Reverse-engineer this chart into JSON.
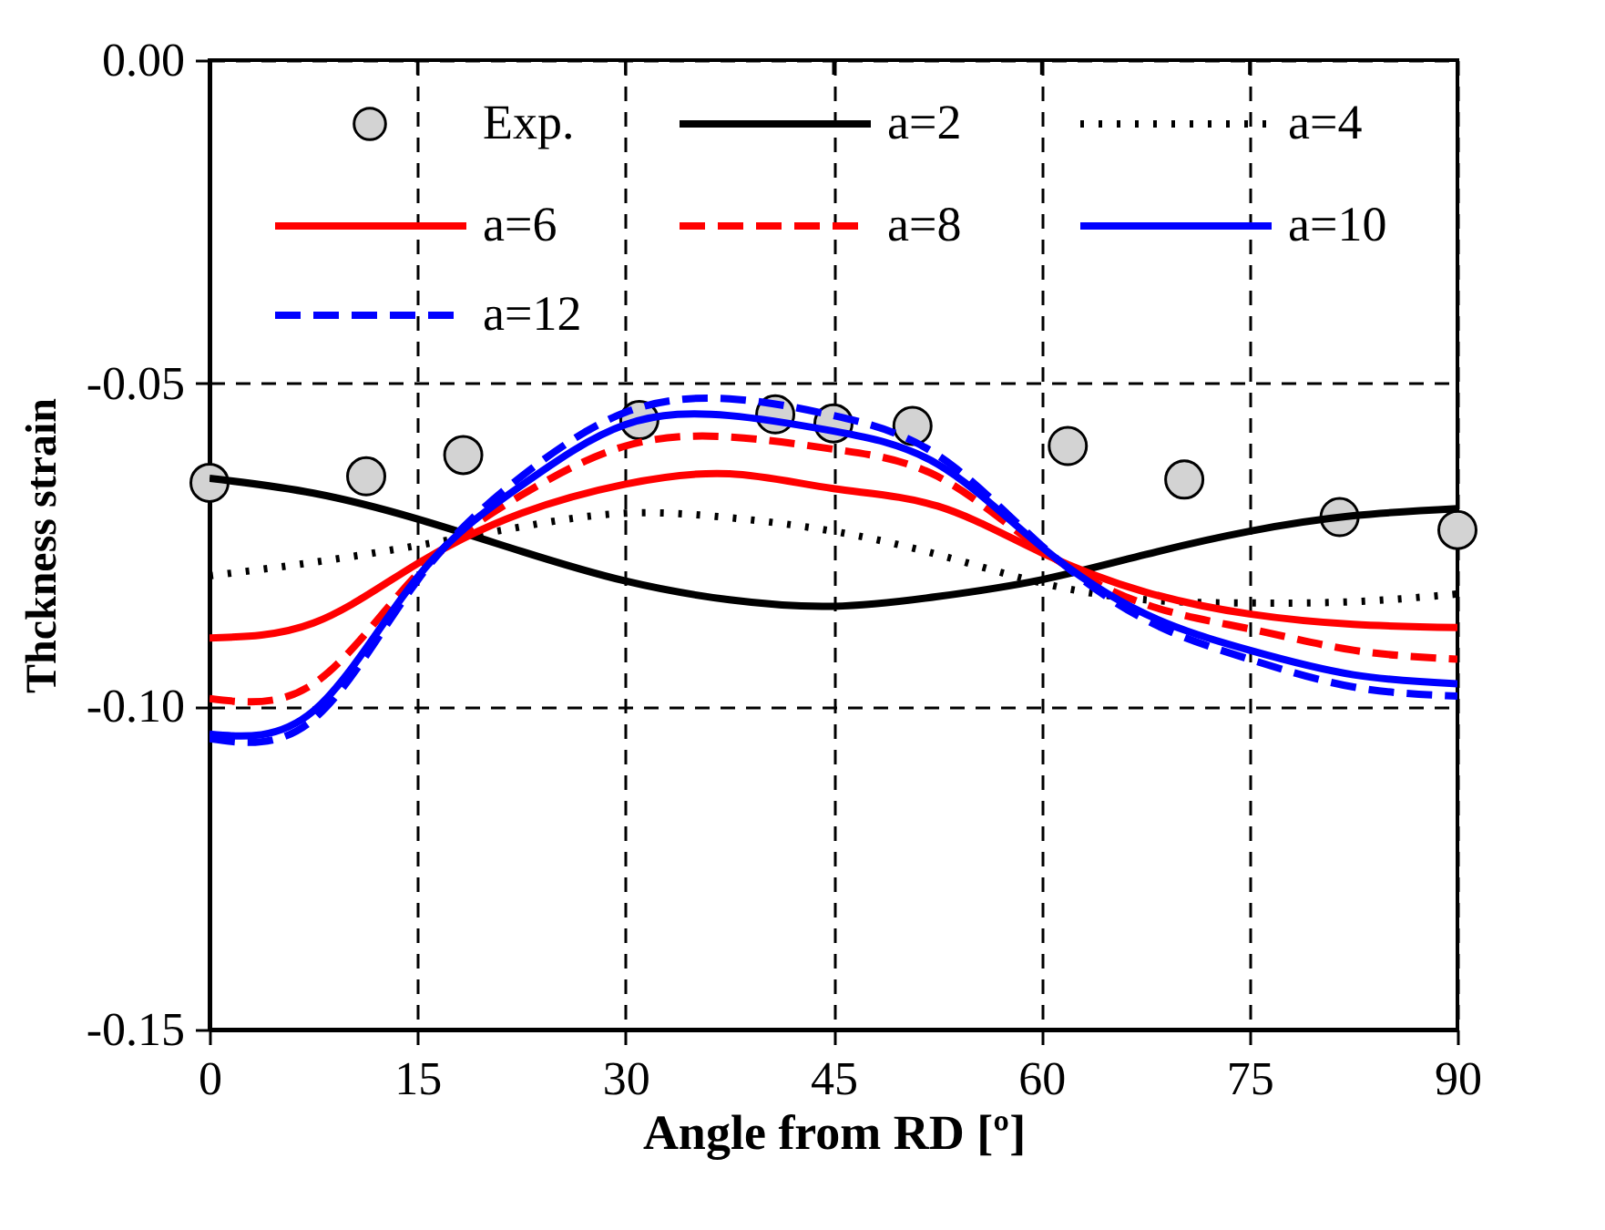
{
  "chart_data": {
    "type": "line",
    "xlabel": "Angle from RD [º]",
    "ylabel": "Thckness strain",
    "x": [
      0,
      7.5,
      15,
      22.5,
      30,
      37.5,
      45,
      52.5,
      60,
      67.5,
      75,
      82.5,
      90
    ],
    "xlim": [
      0,
      90
    ],
    "xticks": [
      0,
      15,
      30,
      45,
      60,
      75,
      90
    ],
    "ylim": [
      -0.15,
      0
    ],
    "yticks": [
      {
        "value": -0.15,
        "label": "-0.15"
      },
      {
        "value": -0.1,
        "label": "-0.10"
      },
      {
        "value": -0.05,
        "label": "-0.05"
      },
      {
        "value": 0,
        "label": "0.00"
      }
    ],
    "grid": true,
    "legend": "top",
    "series": [
      {
        "name": "Exp.",
        "type": "scatter",
        "marker": "circle",
        "color": "#d3d3d3",
        "x": [
          0,
          11.3,
          18.3,
          31,
          40.8,
          45,
          50.7,
          61.9,
          70.3,
          81.5,
          90
        ],
        "values": [
          -0.0654,
          -0.0644,
          -0.0611,
          -0.0557,
          -0.0548,
          -0.0562,
          -0.0566,
          -0.0597,
          -0.0649,
          -0.0707,
          -0.0727
        ]
      },
      {
        "name": "a=2",
        "color": "#000000",
        "line_style": "solid",
        "values": [
          -0.0647,
          -0.067,
          -0.071,
          -0.076,
          -0.0806,
          -0.0835,
          -0.0845,
          -0.083,
          -0.0804,
          -0.0765,
          -0.0729,
          -0.0705,
          -0.0694
        ]
      },
      {
        "name": "a=4",
        "color": "#000000",
        "line_style": "dotted",
        "values": [
          -0.0798,
          -0.0777,
          -0.0751,
          -0.0722,
          -0.0701,
          -0.0708,
          -0.0729,
          -0.0765,
          -0.0809,
          -0.0835,
          -0.084,
          -0.0838,
          -0.0826
        ]
      },
      {
        "name": "a=6",
        "color": "#ff0000",
        "line_style": "solid",
        "values": [
          -0.0894,
          -0.0871,
          -0.0779,
          -0.0701,
          -0.0656,
          -0.064,
          -0.0663,
          -0.069,
          -0.0762,
          -0.0823,
          -0.0857,
          -0.0873,
          -0.0878
        ]
      },
      {
        "name": "a=8",
        "color": "#ff0000",
        "line_style": "dashed",
        "values": [
          -0.0988,
          -0.0965,
          -0.0795,
          -0.0673,
          -0.0597,
          -0.0583,
          -0.0602,
          -0.0644,
          -0.0757,
          -0.0842,
          -0.088,
          -0.0913,
          -0.0927
        ]
      },
      {
        "name": "a=10",
        "color": "#0000ff",
        "line_style": "solid",
        "values": [
          -0.1043,
          -0.1007,
          -0.08,
          -0.0658,
          -0.0564,
          -0.055,
          -0.0574,
          -0.0625,
          -0.0753,
          -0.0857,
          -0.0913,
          -0.0951,
          -0.0965
        ]
      },
      {
        "name": "a=12",
        "color": "#0000ff",
        "line_style": "dashed",
        "values": [
          -0.105,
          -0.102,
          -0.0805,
          -0.0644,
          -0.0545,
          -0.0524,
          -0.055,
          -0.0611,
          -0.0751,
          -0.0866,
          -0.0927,
          -0.097,
          -0.0984
        ]
      }
    ]
  }
}
